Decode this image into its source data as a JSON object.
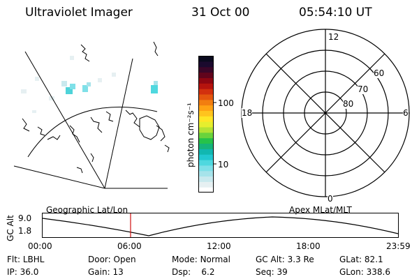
{
  "header": {
    "instrument": "Ultraviolet Imager",
    "date": "31 Oct 00",
    "time": "05:54:10 UT"
  },
  "colorbar": {
    "label": "photon cm⁻²s⁻¹",
    "ticks": [
      "100",
      "10"
    ],
    "colors": [
      "#ffffff",
      "#e6f0f2",
      "#c9e9ee",
      "#a6e3ea",
      "#7fe0e8",
      "#4fd8df",
      "#22c8d0",
      "#11b7b0",
      "#16b47a",
      "#26c24a",
      "#6ad33c",
      "#b4e234",
      "#e6ee2e",
      "#ffe626",
      "#ffc41e",
      "#ffa314",
      "#f27e10",
      "#e4560e",
      "#d2300e",
      "#b5130e",
      "#8e0612",
      "#61041c",
      "#3a0628",
      "#1b0a2e",
      "#0a0a1e"
    ]
  },
  "polar": {
    "mlt_labels": {
      "top": "12",
      "left": "18",
      "right": "6",
      "bottom": "0"
    },
    "lat_labels": [
      "60",
      "70",
      "80"
    ]
  },
  "timeline": {
    "ylabel": "GC Alt",
    "y_ticks": [
      "9.0",
      "1.8"
    ],
    "left_title": "Geographic Lat/Lon",
    "right_title": "Apex MLat/MLT",
    "x_ticks": [
      "00:00",
      "06:00",
      "12:00",
      "18:00",
      "23:59"
    ],
    "current_time_fraction": 0.247
  },
  "footer": {
    "row1": [
      {
        "label": "Flt:",
        "value": "LBHL"
      },
      {
        "label": "Door:",
        "value": "Open"
      },
      {
        "label": "Mode:",
        "value": "Normal"
      },
      {
        "label": "GC Alt:",
        "value": "3.3 Re"
      },
      {
        "label": "GLat:",
        "value": "82.1"
      }
    ],
    "row2": [
      {
        "label": "IP:",
        "value": "36.0"
      },
      {
        "label": "Gain:",
        "value": "13"
      },
      {
        "label": "Dsp:",
        "value": "6.2"
      },
      {
        "label": "Seq:",
        "value": "39"
      },
      {
        "label": "GLon:",
        "value": "338.6"
      }
    ]
  }
}
